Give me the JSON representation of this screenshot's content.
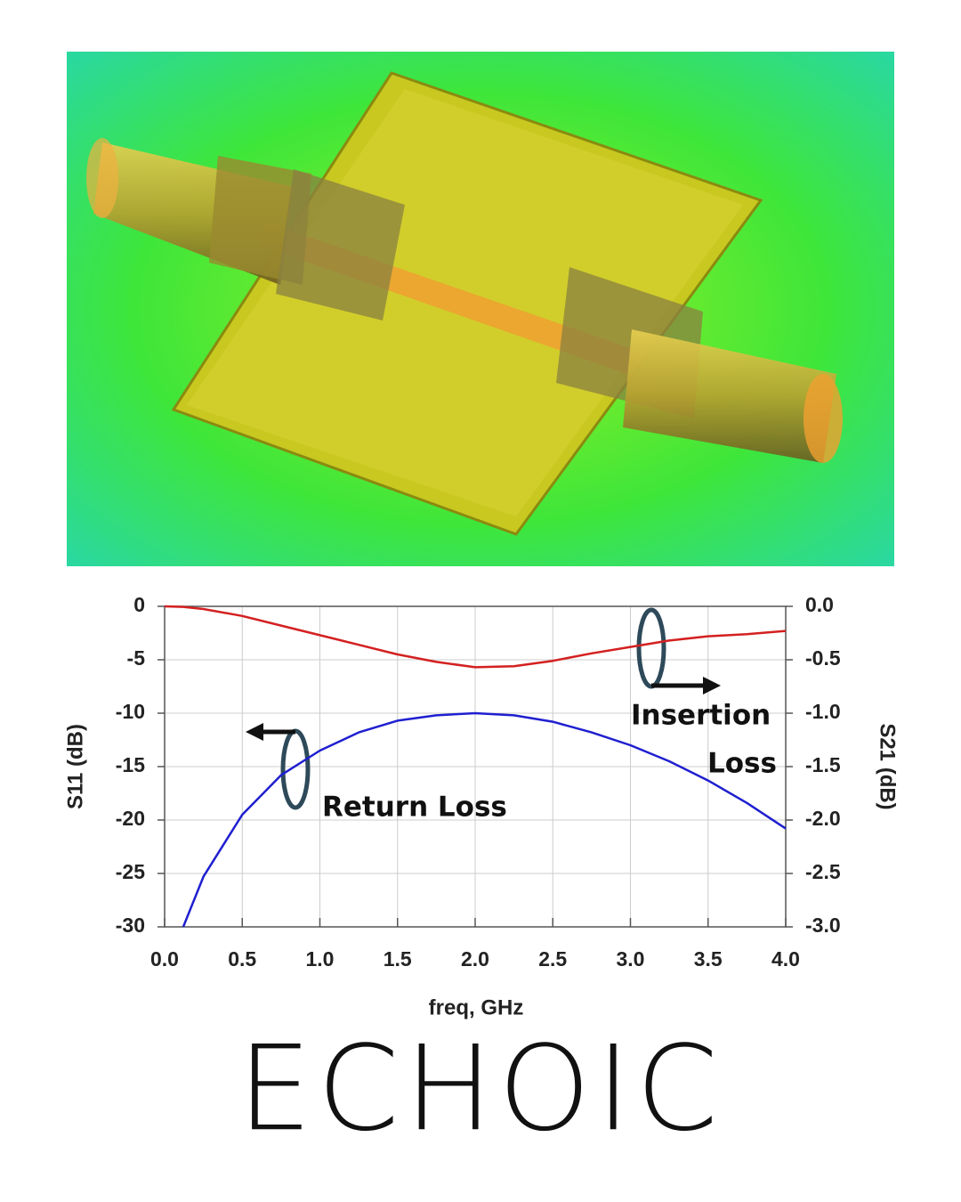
{
  "chart_data": {
    "type": "line",
    "x_label": "freq, GHz",
    "y_label": "S11 (dB)",
    "y2_label": "S21 (dB)",
    "x": [
      0,
      0.12,
      0.25,
      0.5,
      0.75,
      1.0,
      1.25,
      1.5,
      1.75,
      2.0,
      2.25,
      2.5,
      2.75,
      3.0,
      3.25,
      3.5,
      3.75,
      4.0
    ],
    "series": [
      {
        "name": "S11",
        "color": "#1f1fd0",
        "axis": "y",
        "values": [
          null,
          -30,
          -25.3,
          -19.5,
          -15.8,
          -13.5,
          -11.8,
          -10.7,
          -10.2,
          -10,
          -10.2,
          -10.8,
          -11.8,
          -13,
          -14.5,
          -16.3,
          -18.4,
          -20.8
        ]
      },
      {
        "name": "S21",
        "color": "#d42020",
        "axis": "y2",
        "values": [
          0,
          -0.005,
          -0.025,
          -0.09,
          -0.18,
          -0.27,
          -0.36,
          -0.45,
          -0.52,
          -0.57,
          -0.56,
          -0.51,
          -0.44,
          -0.38,
          -0.32,
          -0.28,
          -0.26,
          -0.23
        ]
      }
    ],
    "xlim": [
      0,
      4
    ],
    "xticks": [
      {
        "value": 0,
        "label": "0.0"
      },
      {
        "value": 0.5,
        "label": "0.5"
      },
      {
        "value": 1,
        "label": "1.0"
      },
      {
        "value": 1.5,
        "label": "1.5"
      },
      {
        "value": 2,
        "label": "2.0"
      },
      {
        "value": 2.5,
        "label": "2.5"
      },
      {
        "value": 3,
        "label": "3.0"
      },
      {
        "value": 3.5,
        "label": "3.5"
      },
      {
        "value": 4,
        "label": "4.0"
      }
    ],
    "ylim": [
      -30,
      0
    ],
    "yticks": [
      -30,
      -25,
      -20,
      -15,
      -10,
      -5,
      0
    ],
    "y2lim": [
      -3,
      0
    ],
    "y2ticks": [
      {
        "value": -3,
        "label": "-3.0"
      },
      {
        "value": -2.5,
        "label": "-2.5"
      },
      {
        "value": -2,
        "label": "-2.0"
      },
      {
        "value": -1.5,
        "label": "-1.5"
      },
      {
        "value": -1,
        "label": "-1.0"
      },
      {
        "value": -0.5,
        "label": "-0.5"
      },
      {
        "value": 0,
        "label": "0.0"
      }
    ],
    "grid": true,
    "annotations": [
      "Return Loss",
      "Insertion",
      "Loss"
    ]
  },
  "logo": "ECHOIC"
}
